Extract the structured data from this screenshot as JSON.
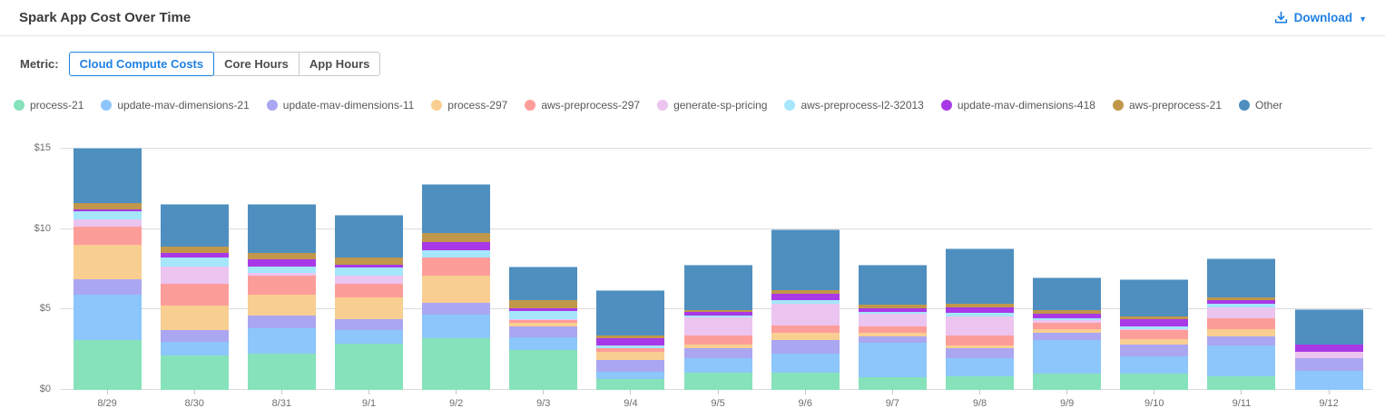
{
  "header": {
    "title": "Spark App Cost Over Time",
    "download_label": "Download",
    "download_caret": "▼"
  },
  "metric": {
    "label": "Metric:",
    "tabs": [
      {
        "label": "Cloud Compute Costs",
        "active": true
      },
      {
        "label": "Core Hours",
        "active": false
      },
      {
        "label": "App Hours",
        "active": false
      }
    ]
  },
  "colors": {
    "accent_blue": "#1f81e4",
    "gridline": "#dcdcdc",
    "axis_text": "#6f6f6f"
  },
  "chart_data": {
    "type": "bar",
    "stacked": true,
    "title": "Spark App Cost Over Time",
    "xlabel": "",
    "ylabel": "Cloud Compute Costs ($)",
    "grid": "horizontal",
    "legend_position": "top",
    "ylim": [
      0,
      15.8
    ],
    "y_tick_values": [
      0,
      5,
      10,
      15
    ],
    "y_tick_labels": [
      "$0",
      "$5",
      "$10",
      "$15"
    ],
    "categories": [
      "8/29",
      "8/30",
      "8/31",
      "9/1",
      "9/2",
      "9/3",
      "9/4",
      "9/5",
      "9/6",
      "9/7",
      "9/8",
      "9/9",
      "9/10",
      "9/11",
      "9/12"
    ],
    "series": [
      {
        "name": "process-21",
        "color": "#86e2ba",
        "values": [
          3.1,
          2.17,
          2.25,
          2.85,
          3.2,
          2.5,
          0.7,
          1.08,
          1.1,
          0.8,
          0.84,
          1.02,
          1.04,
          0.83,
          0.0
        ]
      },
      {
        "name": "update-mav-dimensions-21",
        "color": "#8cc6fa",
        "values": [
          2.8,
          0.83,
          1.6,
          0.85,
          1.5,
          0.75,
          0.42,
          0.92,
          1.14,
          2.15,
          1.16,
          2.08,
          1.02,
          1.95,
          1.17
        ]
      },
      {
        "name": "update-mav-dimensions-11",
        "color": "#aba6f1",
        "values": [
          1.0,
          0.72,
          0.8,
          0.7,
          0.72,
          0.72,
          0.76,
          0.6,
          0.85,
          0.37,
          0.6,
          0.47,
          0.76,
          0.57,
          0.81
        ]
      },
      {
        "name": "process-297",
        "color": "#f9ce91",
        "values": [
          2.1,
          1.51,
          1.28,
          1.37,
          1.7,
          0.23,
          0.49,
          0.23,
          0.47,
          0.23,
          0.19,
          0.19,
          0.34,
          0.41,
          0.0
        ]
      },
      {
        "name": "aws-preprocess-297",
        "color": "#fd9d9a",
        "values": [
          1.15,
          1.36,
          1.2,
          0.85,
          1.1,
          0.15,
          0.23,
          0.57,
          0.44,
          0.38,
          0.61,
          0.4,
          0.54,
          0.72,
          0.0
        ]
      },
      {
        "name": "generate-sp-pricing",
        "color": "#ecc4f0",
        "values": [
          0.45,
          1.09,
          0.15,
          0.47,
          0.0,
          0.05,
          0.0,
          1.1,
          1.37,
          0.8,
          1.19,
          0.19,
          0.08,
          0.63,
          0.38
        ]
      },
      {
        "name": "aws-preprocess-l2-32013",
        "color": "#a5e6fb",
        "values": [
          0.5,
          0.57,
          0.4,
          0.53,
          0.49,
          0.5,
          0.19,
          0.13,
          0.24,
          0.15,
          0.19,
          0.13,
          0.19,
          0.26,
          0.0
        ]
      },
      {
        "name": "update-mav-dimensions-418",
        "color": "#a939e6",
        "values": [
          0.15,
          0.28,
          0.47,
          0.19,
          0.5,
          0.18,
          0.42,
          0.21,
          0.38,
          0.19,
          0.34,
          0.25,
          0.42,
          0.19,
          0.47
        ]
      },
      {
        "name": "aws-preprocess-21",
        "color": "#c0974b",
        "values": [
          0.35,
          0.38,
          0.38,
          0.45,
          0.57,
          0.52,
          0.19,
          0.13,
          0.23,
          0.23,
          0.23,
          0.23,
          0.19,
          0.19,
          0.0
        ]
      },
      {
        "name": "Other",
        "color": "#4e8fc0",
        "values": [
          3.45,
          2.66,
          3.05,
          2.64,
          3.0,
          2.1,
          2.8,
          2.81,
          3.78,
          2.48,
          3.45,
          2.04,
          2.32,
          2.45,
          2.2
        ]
      }
    ]
  }
}
